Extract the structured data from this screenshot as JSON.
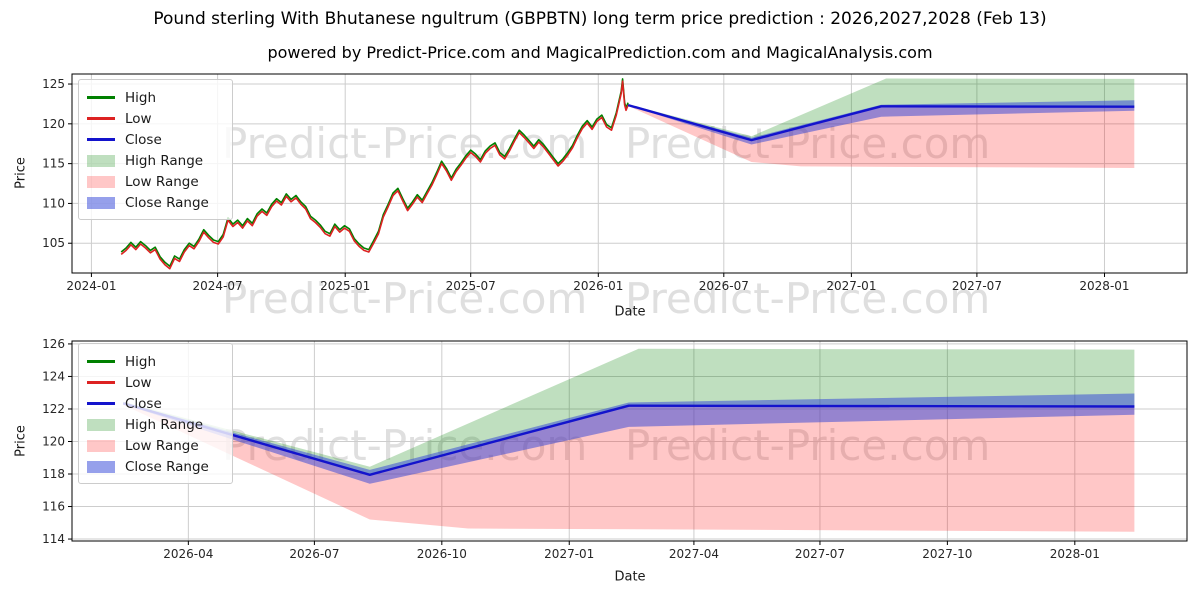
{
  "title": "Pound sterling With Bhutanese ngultrum (GBPBTN) long term price prediction : 2026,2027,2028 (Feb 13)",
  "subtitle": "powered by Predict-Price.com and MagicalPrediction.com and MagicalAnalysis.com",
  "watermark": {
    "text": "Predict-Price.com"
  },
  "colors": {
    "high": "#008000",
    "low": "#dd2222",
    "close": "#1313cc",
    "high_range": "rgba(0,128,0,0.25)",
    "low_range": "rgba(255,0,0,0.22)",
    "close_range": "rgba(45,65,215,0.5)",
    "grid": "#cdcdcd",
    "spine": "#000000",
    "tick_label": "#262626"
  },
  "legend": [
    {
      "label": "High",
      "type": "line",
      "color": "high"
    },
    {
      "label": "Low",
      "type": "line",
      "color": "low"
    },
    {
      "label": "Close",
      "type": "line",
      "color": "close"
    },
    {
      "label": "High Range",
      "type": "patch",
      "color": "high_range"
    },
    {
      "label": "Low Range",
      "type": "patch",
      "color": "low_range"
    },
    {
      "label": "Close Range",
      "type": "patch",
      "color": "close_range"
    }
  ],
  "forecast": {
    "close": {
      "dates": [
        "2026-02-13",
        "2026-08-10",
        "2027-02-13",
        "2028-02-13"
      ],
      "values": [
        122.35,
        117.95,
        122.2,
        122.15
      ]
    },
    "high_range_top": {
      "dates": [
        "2026-02-13",
        "2026-08-10",
        "2027-02-20",
        "2028-02-13"
      ],
      "values": [
        122.45,
        118.45,
        125.7,
        125.65
      ]
    },
    "low_range_bottom": {
      "dates": [
        "2026-02-13",
        "2026-08-10",
        "2026-10-20",
        "2028-02-13"
      ],
      "values": [
        122.25,
        115.2,
        114.65,
        114.45
      ]
    },
    "close_range_top": {
      "dates": [
        "2026-02-13",
        "2026-08-10",
        "2027-02-13",
        "2028-02-13"
      ],
      "values": [
        122.4,
        118.25,
        122.4,
        122.95
      ]
    },
    "close_range_bottom": {
      "dates": [
        "2026-02-13",
        "2026-08-10",
        "2027-02-13",
        "2028-02-13"
      ],
      "values": [
        122.3,
        117.4,
        120.9,
        121.65
      ]
    }
  },
  "chart_data": [
    {
      "type": "line",
      "xlabel": "Date",
      "ylabel": "Price",
      "grid": true,
      "legend_position": "upper left",
      "x_domain": [
        "2023-12-04",
        "2028-04-29"
      ],
      "ylim": [
        101.26,
        126.26
      ],
      "x_ticks": [
        {
          "date": "2024-01-01",
          "label": "2024-01"
        },
        {
          "date": "2024-07-01",
          "label": "2024-07"
        },
        {
          "date": "2025-01-01",
          "label": "2025-01"
        },
        {
          "date": "2025-07-01",
          "label": "2025-07"
        },
        {
          "date": "2026-01-01",
          "label": "2026-01"
        },
        {
          "date": "2026-07-01",
          "label": "2026-07"
        },
        {
          "date": "2027-01-01",
          "label": "2027-01"
        },
        {
          "date": "2027-07-01",
          "label": "2027-07"
        },
        {
          "date": "2028-01-01",
          "label": "2028-01"
        }
      ],
      "y_ticks": [
        105,
        110,
        115,
        120,
        125
      ],
      "history_represents": [
        "High",
        "Low",
        "Close"
      ],
      "history": {
        "dates": [
          "2024-02-13",
          "2024-02-20",
          "2024-02-27",
          "2024-03-05",
          "2024-03-12",
          "2024-03-19",
          "2024-03-26",
          "2024-04-02",
          "2024-04-09",
          "2024-04-16",
          "2024-04-23",
          "2024-04-30",
          "2024-05-07",
          "2024-05-14",
          "2024-05-21",
          "2024-05-28",
          "2024-06-04",
          "2024-06-11",
          "2024-06-18",
          "2024-06-25",
          "2024-07-02",
          "2024-07-09",
          "2024-07-16",
          "2024-07-23",
          "2024-07-30",
          "2024-08-06",
          "2024-08-13",
          "2024-08-20",
          "2024-08-27",
          "2024-09-03",
          "2024-09-10",
          "2024-09-17",
          "2024-09-24",
          "2024-10-01",
          "2024-10-08",
          "2024-10-15",
          "2024-10-22",
          "2024-10-29",
          "2024-11-05",
          "2024-11-12",
          "2024-11-19",
          "2024-11-26",
          "2024-12-03",
          "2024-12-10",
          "2024-12-17",
          "2024-12-24",
          "2024-12-31",
          "2025-01-07",
          "2025-01-14",
          "2025-01-21",
          "2025-01-28",
          "2025-02-04",
          "2025-02-11",
          "2025-02-18",
          "2025-02-25",
          "2025-03-04",
          "2025-03-11",
          "2025-03-18",
          "2025-03-25",
          "2025-04-01",
          "2025-04-08",
          "2025-04-15",
          "2025-04-22",
          "2025-04-29",
          "2025-05-06",
          "2025-05-13",
          "2025-05-20",
          "2025-05-27",
          "2025-06-03",
          "2025-06-10",
          "2025-06-17",
          "2025-06-24",
          "2025-07-01",
          "2025-07-08",
          "2025-07-15",
          "2025-07-22",
          "2025-07-29",
          "2025-08-05",
          "2025-08-12",
          "2025-08-19",
          "2025-08-26",
          "2025-09-02",
          "2025-09-09",
          "2025-09-16",
          "2025-09-23",
          "2025-09-30",
          "2025-10-07",
          "2025-10-14",
          "2025-10-21",
          "2025-10-28",
          "2025-11-04",
          "2025-11-11",
          "2025-11-18",
          "2025-11-25",
          "2025-12-02",
          "2025-12-09",
          "2025-12-16",
          "2025-12-23",
          "2025-12-30",
          "2026-01-06",
          "2026-01-13",
          "2026-01-20",
          "2026-01-27",
          "2026-02-03",
          "2026-02-05",
          "2026-02-08",
          "2026-02-10",
          "2026-02-13"
        ],
        "values": [
          103.6,
          104.1,
          104.8,
          104.2,
          104.9,
          104.4,
          103.8,
          104.2,
          103.0,
          102.3,
          101.8,
          103.1,
          102.7,
          103.9,
          104.7,
          104.3,
          105.2,
          106.4,
          105.7,
          105.1,
          104.9,
          105.8,
          107.9,
          107.1,
          107.6,
          106.9,
          107.8,
          107.2,
          108.4,
          109.0,
          108.5,
          109.6,
          110.3,
          109.8,
          110.9,
          110.2,
          110.7,
          109.9,
          109.3,
          108.1,
          107.6,
          107.0,
          106.2,
          105.9,
          107.1,
          106.4,
          106.9,
          106.5,
          105.3,
          104.6,
          104.1,
          103.9,
          105.0,
          106.2,
          108.3,
          109.6,
          111.0,
          111.6,
          110.3,
          109.1,
          109.9,
          110.8,
          110.1,
          111.2,
          112.3,
          113.6,
          115.0,
          114.1,
          112.9,
          114.0,
          114.8,
          115.7,
          116.4,
          115.9,
          115.2,
          116.3,
          116.9,
          117.3,
          116.1,
          115.6,
          116.6,
          117.8,
          118.9,
          118.3,
          117.6,
          116.9,
          117.7,
          117.1,
          116.3,
          115.5,
          114.7,
          115.3,
          116.1,
          117.0,
          118.3,
          119.4,
          120.1,
          119.3,
          120.3,
          120.8,
          119.6,
          119.2,
          121.1,
          123.8,
          125.35,
          122.4,
          121.7,
          122.35
        ]
      }
    },
    {
      "type": "area",
      "xlabel": "Date",
      "ylabel": "Price",
      "grid": true,
      "legend_position": "upper left",
      "x_domain": [
        "2026-01-07",
        "2028-03-22"
      ],
      "ylim": [
        113.88,
        126.18
      ],
      "x_ticks": [
        {
          "date": "2026-04-01",
          "label": "2026-04"
        },
        {
          "date": "2026-07-01",
          "label": "2026-07"
        },
        {
          "date": "2026-10-01",
          "label": "2026-10"
        },
        {
          "date": "2027-01-01",
          "label": "2027-01"
        },
        {
          "date": "2027-04-01",
          "label": "2027-04"
        },
        {
          "date": "2027-07-01",
          "label": "2027-07"
        },
        {
          "date": "2027-10-01",
          "label": "2027-10"
        },
        {
          "date": "2028-01-01",
          "label": "2028-01"
        }
      ],
      "y_ticks": [
        114,
        116,
        118,
        120,
        122,
        124,
        126
      ]
    }
  ]
}
